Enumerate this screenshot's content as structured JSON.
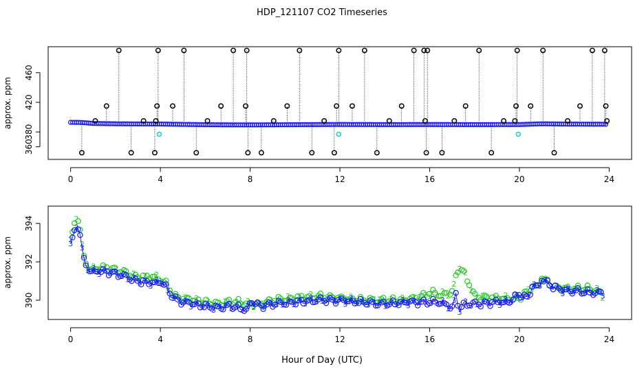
{
  "chart_data": [
    {
      "type": "scatter",
      "title": "HDP_121107  CO2 Timeseries",
      "xlabel": "",
      "ylabel": "approx. ppm",
      "xlim": [
        -1.0,
        25.0
      ],
      "ylim": [
        343,
        495
      ],
      "xticks": [
        0,
        4,
        8,
        12,
        16,
        20,
        24
      ],
      "xtick_labels": [
        "0",
        "4",
        "8",
        "12",
        "16",
        "20",
        "24"
      ],
      "yticks": [
        360,
        380,
        420,
        460
      ],
      "ytick_labels": [
        "360",
        "380",
        "420",
        "460"
      ],
      "grid": false,
      "baseline_series": {
        "name": "co2_baseline",
        "color": "#1a1aff",
        "x": [
          0.0,
          0.5,
          1.0,
          2.0,
          3.0,
          4.0,
          5.0,
          6.0,
          7.0,
          8.0,
          10.0,
          12.0,
          14.0,
          16.0,
          18.0,
          20.0,
          20.5,
          21.0,
          22.0,
          23.0,
          23.8
        ],
        "y": [
          393.0,
          392.8,
          391.5,
          391.0,
          390.8,
          390.7,
          390.2,
          389.8,
          389.6,
          389.5,
          389.8,
          390.1,
          389.9,
          390.0,
          389.9,
          390.0,
          390.5,
          391.0,
          390.6,
          390.5,
          390.4
        ]
      },
      "spike_series": {
        "name": "spikes",
        "marker_color": "#000000",
        "x": [
          0.5,
          1.1,
          1.6,
          2.15,
          2.7,
          3.25,
          3.75,
          3.8,
          3.85,
          3.9,
          4.55,
          5.05,
          5.6,
          6.1,
          6.7,
          7.25,
          7.8,
          7.85,
          7.9,
          8.5,
          9.05,
          9.65,
          10.2,
          10.75,
          11.3,
          11.75,
          11.85,
          11.95,
          12.55,
          13.1,
          13.65,
          14.2,
          14.75,
          15.3,
          15.75,
          15.8,
          15.85,
          15.9,
          16.55,
          17.1,
          17.6,
          18.2,
          18.75,
          19.3,
          19.8,
          19.85,
          19.9,
          20.5,
          21.05,
          21.55,
          22.15,
          22.7,
          23.25,
          23.8,
          23.85,
          23.9
        ],
        "y": [
          352,
          395,
          415,
          490,
          352,
          395,
          352,
          395,
          415,
          490,
          415,
          490,
          352,
          395,
          415,
          490,
          415,
          490,
          352,
          352,
          395,
          415,
          490,
          352,
          395,
          352,
          415,
          490,
          415,
          490,
          352,
          395,
          415,
          490,
          490,
          395,
          352,
          490,
          352,
          395,
          415,
          490,
          352,
          395,
          395,
          415,
          490,
          415,
          490,
          352,
          395,
          415,
          490,
          490,
          415,
          395
        ]
      },
      "highlight_series": {
        "name": "cyan_points",
        "color": "#22cccc",
        "x": [
          3.95,
          11.95,
          19.95
        ],
        "y": [
          377,
          377,
          377
        ]
      }
    },
    {
      "type": "scatter",
      "title": "",
      "xlabel": "Hour of Day (UTC)",
      "ylabel": "approx. ppm",
      "xlim": [
        -1.0,
        25.0
      ],
      "ylim": [
        389.0,
        394.9
      ],
      "xticks": [
        0,
        4,
        8,
        12,
        16,
        20,
        24
      ],
      "xtick_labels": [
        "0",
        "4",
        "8",
        "12",
        "16",
        "20",
        "24"
      ],
      "yticks": [
        390,
        392,
        394
      ],
      "ytick_labels": [
        "390",
        "392",
        "394"
      ],
      "grid": false,
      "series": [
        {
          "name": "3",
          "marker_label": "3",
          "color": "#1a1aff",
          "x": [
            0.0,
            0.3,
            0.4,
            0.6,
            0.8,
            1.0,
            1.5,
            2.0,
            2.5,
            3.0,
            3.5,
            3.8,
            4.0,
            4.3,
            4.6,
            5.0,
            5.5,
            6.0,
            6.5,
            7.0,
            7.5,
            7.9,
            8.0,
            8.5,
            9.0,
            10.0,
            11.0,
            12.0,
            13.0,
            14.0,
            15.0,
            16.0,
            16.5,
            17.0,
            17.2,
            17.3,
            17.5,
            18.0,
            19.0,
            19.5,
            20.0,
            20.4,
            20.6,
            20.8,
            21.0,
            21.5,
            22.0,
            22.5,
            23.0,
            23.5,
            23.8
          ],
          "y": [
            392.9,
            394.0,
            393.6,
            392.0,
            391.6,
            391.5,
            391.5,
            391.4,
            391.2,
            391.0,
            390.9,
            390.9,
            391.0,
            390.6,
            390.1,
            389.9,
            389.8,
            389.7,
            389.6,
            389.7,
            389.6,
            389.5,
            389.9,
            389.7,
            389.8,
            389.9,
            390.0,
            390.0,
            389.9,
            389.8,
            389.9,
            389.9,
            389.9,
            389.6,
            390.4,
            389.4,
            389.8,
            389.8,
            389.9,
            389.9,
            390.3,
            390.1,
            390.9,
            390.6,
            391.1,
            390.7,
            390.5,
            390.5,
            390.4,
            390.4,
            390.4
          ]
        },
        {
          "name": "2",
          "marker_label": "2",
          "color": "#22cc22",
          "x": [
            0.0,
            0.3,
            0.4,
            0.6,
            0.8,
            1.0,
            1.5,
            2.0,
            2.5,
            3.0,
            3.5,
            3.8,
            4.0,
            4.3,
            4.6,
            5.0,
            5.5,
            6.0,
            6.5,
            7.0,
            7.5,
            7.9,
            8.0,
            8.5,
            9.0,
            10.0,
            11.0,
            12.0,
            13.0,
            14.0,
            15.0,
            15.9,
            16.0,
            16.5,
            17.0,
            17.3,
            17.6,
            18.0,
            19.0,
            19.5,
            20.0,
            20.4,
            20.6,
            20.8,
            21.0,
            21.5,
            22.0,
            22.5,
            23.0,
            23.5,
            23.8
          ],
          "y": [
            393.1,
            394.5,
            393.9,
            392.1,
            391.7,
            391.6,
            391.7,
            391.6,
            391.4,
            391.2,
            391.2,
            391.2,
            391.1,
            390.8,
            390.2,
            390.1,
            390.0,
            389.9,
            389.8,
            389.9,
            389.9,
            389.8,
            389.8,
            389.8,
            390.0,
            390.1,
            390.2,
            390.1,
            390.0,
            390.0,
            390.0,
            390.3,
            390.4,
            390.3,
            390.4,
            391.8,
            391.3,
            390.2,
            390.1,
            390.1,
            390.1,
            390.5,
            390.8,
            390.6,
            391.2,
            390.7,
            390.6,
            390.6,
            390.6,
            390.5,
            390.2
          ]
        }
      ]
    }
  ]
}
